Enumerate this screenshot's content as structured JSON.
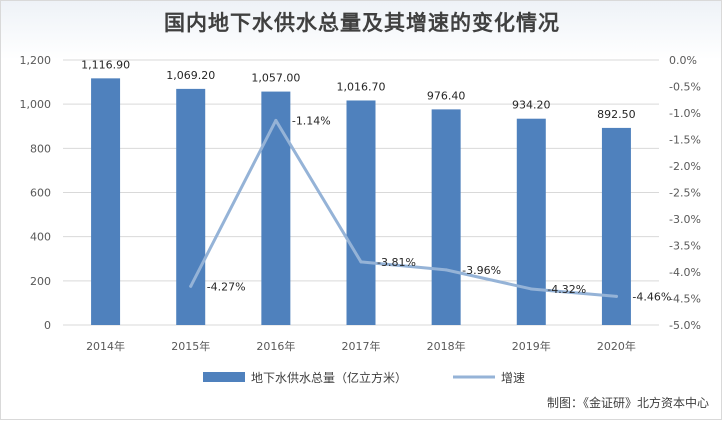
{
  "chart_data": {
    "type": "bar",
    "title": "国内地下水供水总量及其增速的变化情况",
    "categories": [
      "2014年",
      "2015年",
      "2016年",
      "2017年",
      "2018年",
      "2019年",
      "2020年"
    ],
    "series": [
      {
        "name": "地下水供水总量（亿立方米）",
        "type": "bar",
        "axis": "left",
        "color": "#4f81bd",
        "values": [
          1116.9,
          1069.2,
          1057.0,
          1016.7,
          976.4,
          934.2,
          892.5
        ],
        "labels": [
          "1,116.90",
          "1,069.20",
          "1,057.00",
          "1,016.70",
          "976.40",
          "934.20",
          "892.50"
        ]
      },
      {
        "name": "增速",
        "type": "line",
        "axis": "right",
        "color": "#95b3d7",
        "values": [
          null,
          -4.27,
          -1.14,
          -3.81,
          -3.96,
          -4.32,
          -4.46
        ],
        "labels": [
          null,
          "-4.27%",
          "-1.14%",
          "-3.81%",
          "-3.96%",
          "-4.32%",
          "-4.46%"
        ]
      }
    ],
    "y_left": {
      "min": 0,
      "max": 1200,
      "ticks": [
        0,
        200,
        400,
        600,
        800,
        1000,
        1200
      ],
      "tick_labels": [
        "0",
        "200",
        "400",
        "600",
        "800",
        "1,000",
        "1,200"
      ]
    },
    "y_right": {
      "min": -5.0,
      "max": 0.0,
      "ticks": [
        0.0,
        -0.5,
        -1.0,
        -1.5,
        -2.0,
        -2.5,
        -3.0,
        -3.5,
        -4.0,
        -4.5,
        -5.0
      ],
      "tick_labels": [
        "0.0%",
        "-0.5%",
        "-1.0%",
        "-1.5%",
        "-2.0%",
        "-2.5%",
        "-3.0%",
        "-3.5%",
        "-4.0%",
        "-4.5%",
        "-5.0%"
      ]
    },
    "grid": true,
    "legend_position": "bottom"
  },
  "source": "制图：《金证研》北方资本中心"
}
